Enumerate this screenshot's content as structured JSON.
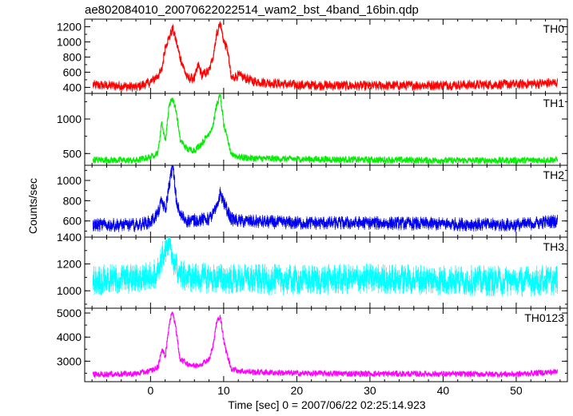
{
  "chart_data": {
    "type": "line",
    "title": "ae802084010_20070622022514_wam2_bst_4band_16bin.qdp",
    "xlabel": "Time [sec] 0 = 2007/06/22 02:25:14.923",
    "ylabel": "Counts/sec",
    "xlim": [
      -9,
      57
    ],
    "x_ticks": [
      0,
      10,
      20,
      30,
      40,
      50
    ],
    "panels": [
      {
        "name": "TH0",
        "color": "#ff0000",
        "ylim": [
          320,
          1300
        ],
        "y_ticks": [
          400,
          600,
          800,
          1000,
          1200
        ],
        "base": 430,
        "noise": 45,
        "series": {
          "x": [
            -8,
            -4,
            -2,
            0,
            1,
            1.5,
            2,
            2.5,
            3,
            3.5,
            4,
            5,
            6,
            6.5,
            7,
            8,
            8.5,
            9,
            9.5,
            10,
            10.5,
            11,
            12,
            14,
            16,
            20,
            30,
            40,
            50,
            55.5
          ],
          "y": [
            430,
            420,
            400,
            470,
            560,
            620,
            950,
            1050,
            1180,
            1000,
            800,
            520,
            520,
            700,
            560,
            620,
            800,
            1100,
            1250,
            1000,
            900,
            520,
            560,
            480,
            460,
            430,
            420,
            430,
            440,
            460
          ]
        }
      },
      {
        "name": "TH1",
        "color": "#00ee00",
        "ylim": [
          330,
          1370
        ],
        "y_ticks": [
          500,
          1000
        ],
        "base": 420,
        "noise": 35,
        "series": {
          "x": [
            -8,
            -2,
            0,
            1,
            1.5,
            2,
            2.5,
            3,
            3.5,
            4,
            5,
            6,
            7,
            8,
            8.5,
            9,
            9.5,
            10,
            10.5,
            11,
            12,
            14,
            20,
            30,
            40,
            50,
            55.5
          ],
          "y": [
            410,
            400,
            450,
            520,
            950,
            680,
            1200,
            1300,
            1100,
            700,
            560,
            550,
            650,
            800,
            900,
            1200,
            1350,
            900,
            700,
            500,
            450,
            430,
            420,
            410,
            400,
            400,
            410
          ]
        }
      },
      {
        "name": "TH2",
        "color": "#0000ee",
        "ylim": [
          440,
          1150
        ],
        "y_ticks": [
          600,
          800,
          1000
        ],
        "base": 560,
        "noise": 45,
        "series": {
          "x": [
            -8,
            -2,
            0,
            1,
            1.5,
            2,
            2.5,
            3,
            3.5,
            4,
            5,
            8,
            9,
            9.5,
            10,
            11,
            12,
            20,
            30,
            40,
            50,
            55.5
          ],
          "y": [
            560,
            560,
            590,
            680,
            800,
            700,
            950,
            1150,
            800,
            660,
            600,
            620,
            720,
            880,
            780,
            620,
            600,
            580,
            580,
            570,
            560,
            600
          ]
        }
      },
      {
        "name": "TH3",
        "color": "#00ffff",
        "ylim": [
          870,
          1400
        ],
        "y_ticks": [
          1000,
          1200,
          1400
        ],
        "base": 1090,
        "noise": 75,
        "series": {
          "x": [
            -8,
            -2,
            0,
            1,
            1.5,
            2,
            2.5,
            3,
            3.5,
            4,
            5,
            10,
            20,
            30,
            40,
            50,
            55.5
          ],
          "y": [
            1080,
            1090,
            1110,
            1150,
            1250,
            1300,
            1330,
            1250,
            1180,
            1120,
            1100,
            1090,
            1080,
            1090,
            1080,
            1070,
            1080
          ]
        }
      },
      {
        "name": "TH0123",
        "color": "#ff00ff",
        "ylim": [
          2150,
          5200
        ],
        "y_ticks": [
          3000,
          4000,
          5000
        ],
        "base": 2520,
        "noise": 90,
        "series": {
          "x": [
            -8,
            -2,
            0,
            1,
            1.5,
            2,
            2.5,
            3,
            3.5,
            4,
            5,
            6,
            7,
            8,
            8.5,
            9,
            9.5,
            10,
            10.5,
            11,
            12,
            14,
            20,
            30,
            40,
            50,
            55.5
          ],
          "y": [
            2450,
            2480,
            2600,
            2750,
            3500,
            3200,
            4500,
            5100,
            4200,
            3100,
            2900,
            2800,
            2900,
            3100,
            3600,
            4600,
            4900,
            3800,
            3200,
            2700,
            2600,
            2550,
            2500,
            2480,
            2470,
            2460,
            2560
          ]
        }
      }
    ]
  }
}
